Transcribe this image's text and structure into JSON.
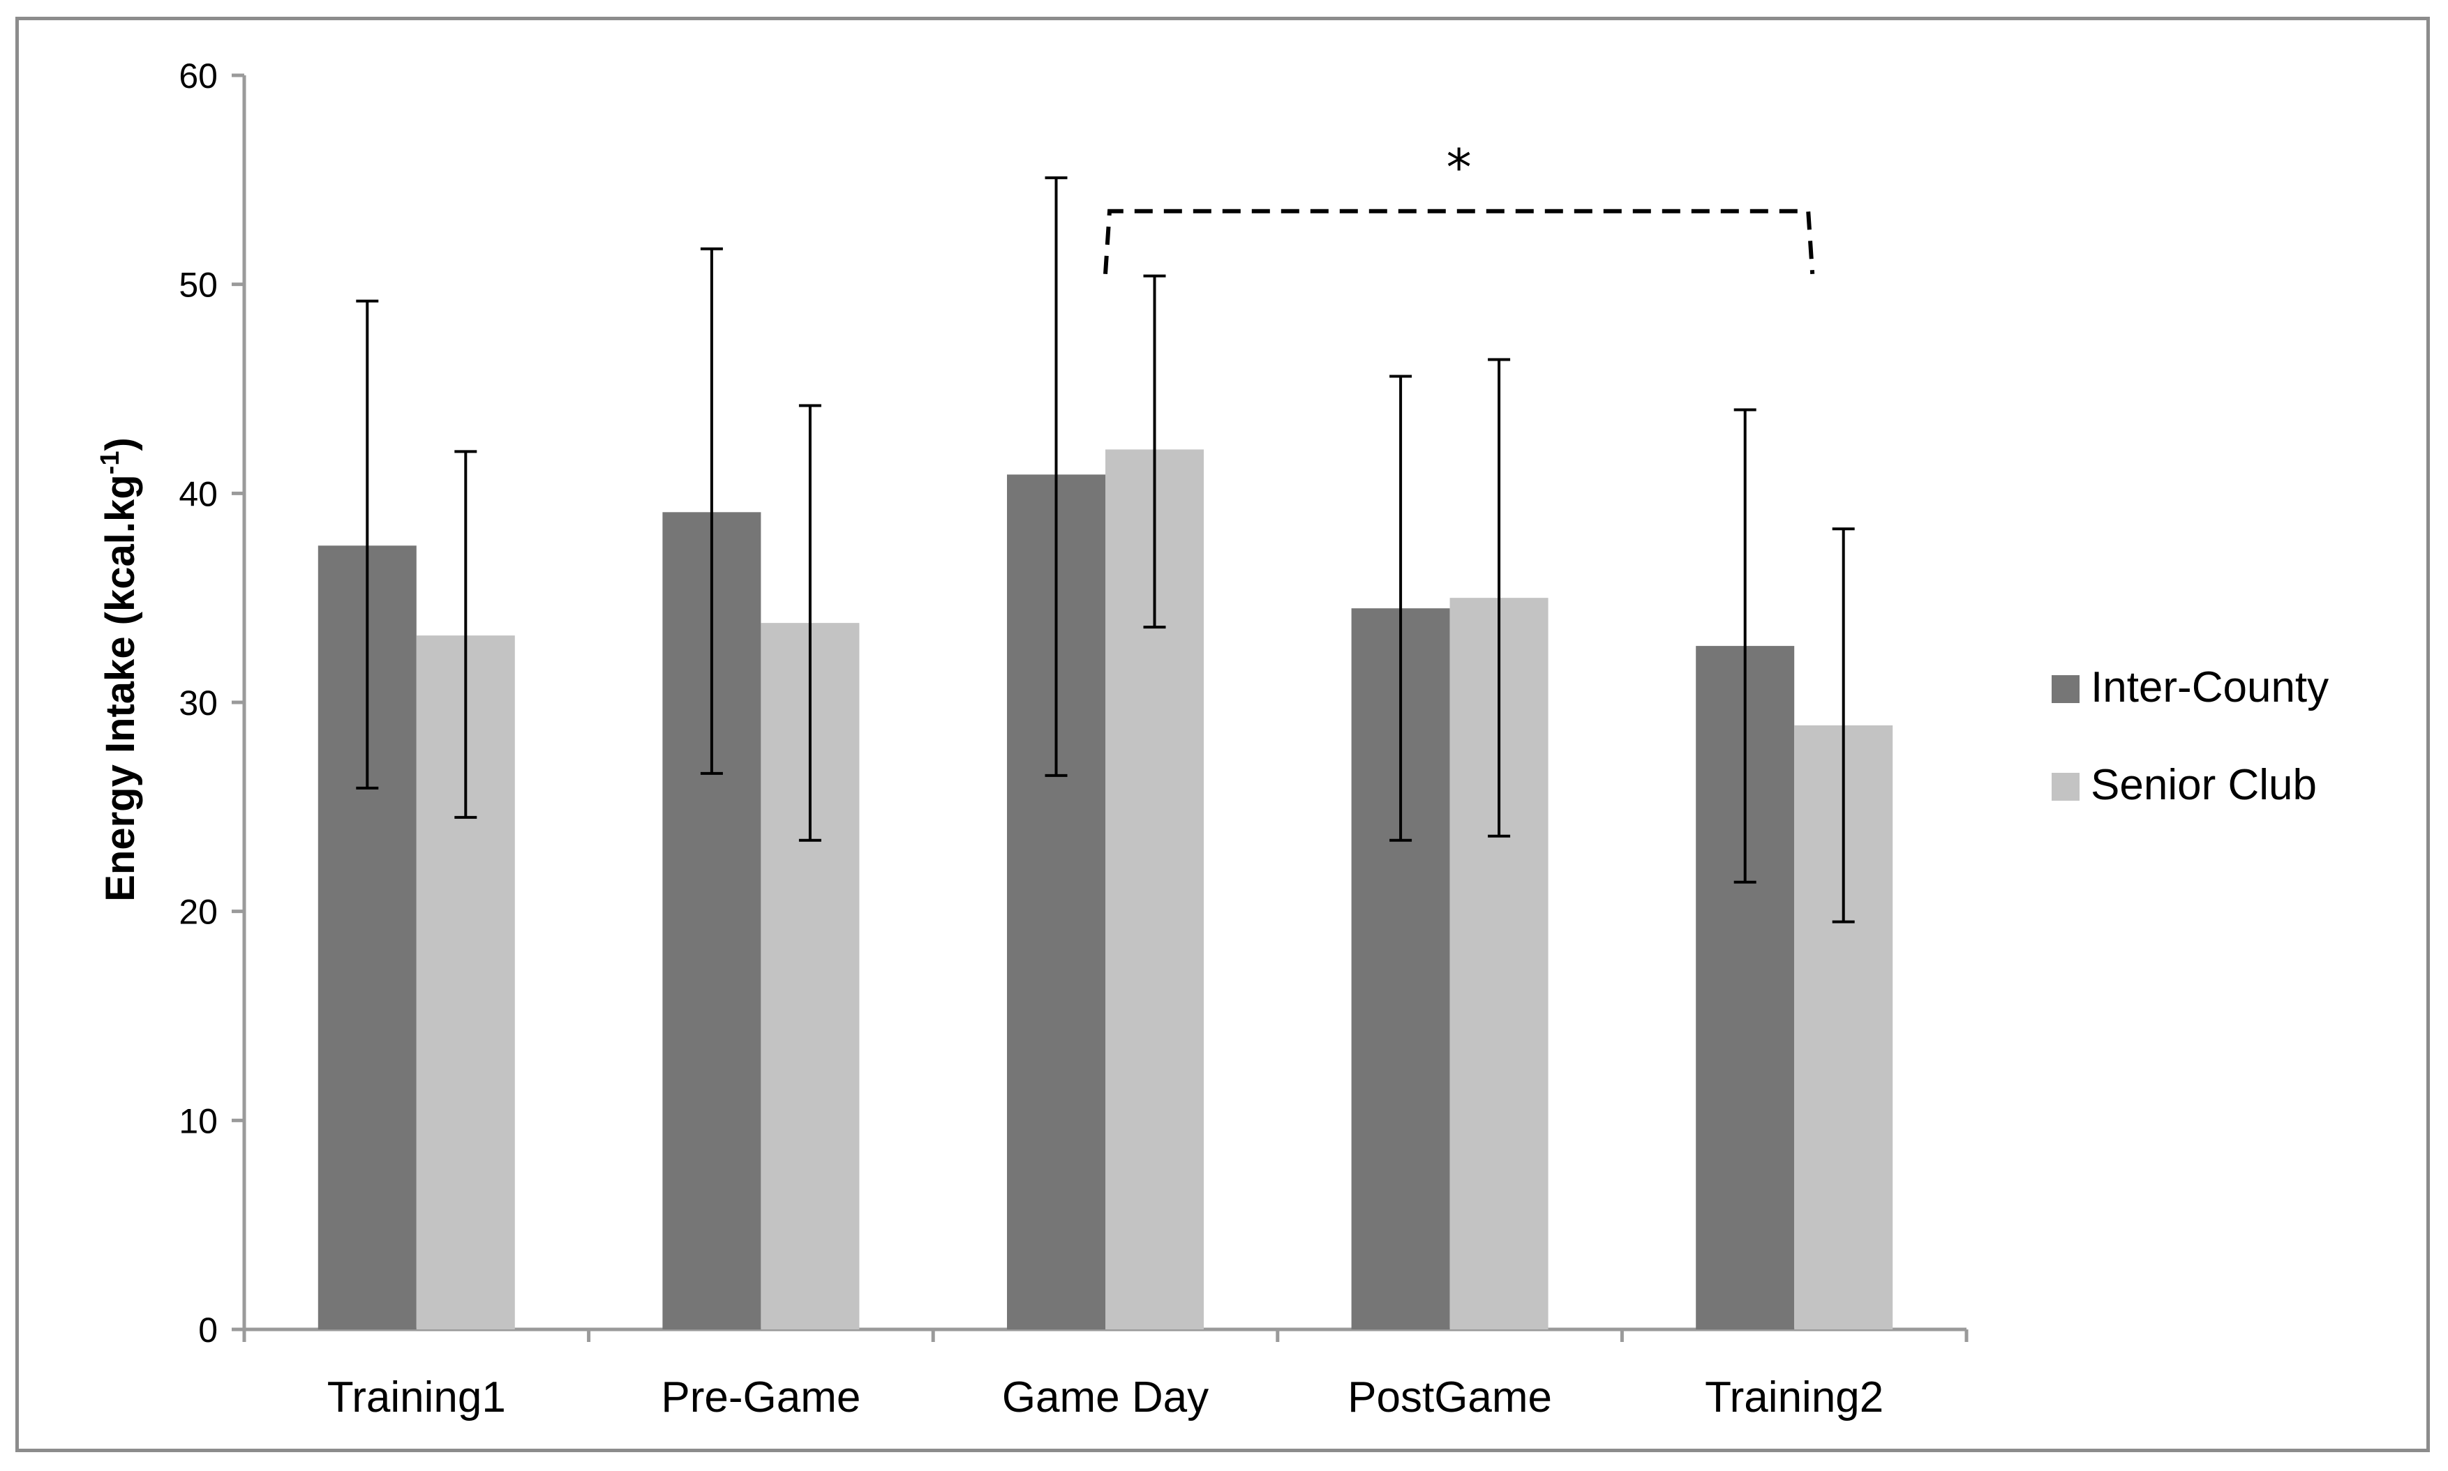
{
  "chart_data": {
    "type": "bar",
    "title": "",
    "xlabel": "",
    "ylabel": "Energy Intake (kcal.kg",
    "ylabel_superscript": "-1",
    "ylabel_close": ")",
    "ylim": [
      0,
      60
    ],
    "yticks": [
      0,
      10,
      20,
      30,
      40,
      50,
      60
    ],
    "categories": [
      "Training1",
      "Pre-Game",
      "Game Day",
      "PostGame",
      "Training2"
    ],
    "series": [
      {
        "name": "Inter-County",
        "color": "#767676",
        "values": [
          37.5,
          39.1,
          40.9,
          34.5,
          32.7
        ],
        "err_low": [
          25.9,
          26.6,
          26.5,
          23.4,
          21.4
        ],
        "err_high": [
          49.2,
          51.7,
          55.1,
          45.6,
          44.0
        ]
      },
      {
        "name": "Senior Club",
        "color": "#c3c3c3",
        "values": [
          33.2,
          33.8,
          42.1,
          35.0,
          28.9
        ],
        "err_low": [
          24.5,
          23.4,
          33.6,
          23.6,
          19.5
        ],
        "err_high": [
          42.0,
          44.2,
          50.4,
          46.4,
          38.3
        ]
      }
    ],
    "legend_position": "right",
    "grid": false,
    "annotation": {
      "text": "*",
      "from_category": "Game Day",
      "to_category": "Training2",
      "level": 53.5
    }
  }
}
